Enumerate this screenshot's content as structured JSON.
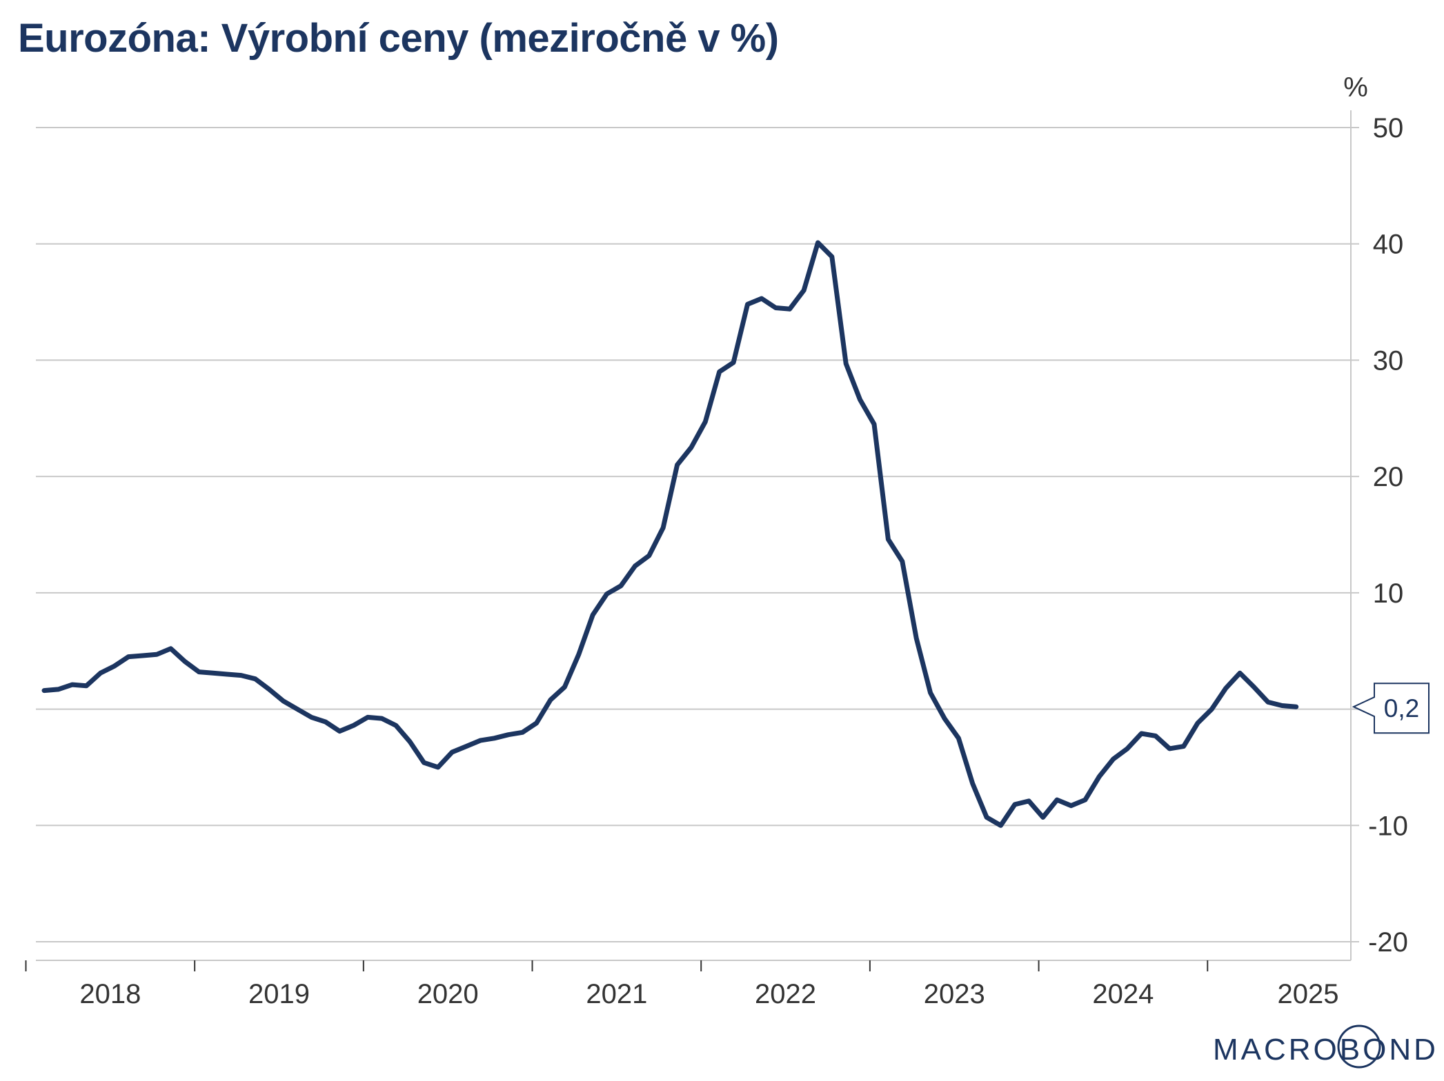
{
  "title": "Eurozóna: Výrobní ceny (meziročně v %)",
  "brand": "MACROBOND",
  "chart_data": {
    "type": "line",
    "title": "Eurozóna: Výrobní ceny (meziročně v %)",
    "ylabel": "%",
    "ylim": [
      -20,
      50
    ],
    "yticks": [
      "50",
      "40",
      "30",
      "20",
      "10",
      "0",
      "-10",
      "-20"
    ],
    "grid": true,
    "x_labels": [
      "2018",
      "2019",
      "2020",
      "2021",
      "2022",
      "2023",
      "2024",
      "2025"
    ],
    "last_value_label": "0,2",
    "series": [
      {
        "color": "#1c3560",
        "x": [
          "2018-01",
          "2018-02",
          "2018-03",
          "2018-04",
          "2018-05",
          "2018-06",
          "2018-07",
          "2018-08",
          "2018-09",
          "2018-10",
          "2018-11",
          "2018-12",
          "2019-01",
          "2019-02",
          "2019-03",
          "2019-04",
          "2019-05",
          "2019-06",
          "2019-07",
          "2019-08",
          "2019-09",
          "2019-10",
          "2019-11",
          "2019-12",
          "2020-01",
          "2020-02",
          "2020-03",
          "2020-04",
          "2020-05",
          "2020-06",
          "2020-07",
          "2020-08",
          "2020-09",
          "2020-10",
          "2020-11",
          "2020-12",
          "2021-01",
          "2021-02",
          "2021-03",
          "2021-04",
          "2021-05",
          "2021-06",
          "2021-07",
          "2021-08",
          "2021-09",
          "2021-10",
          "2021-11",
          "2021-12",
          "2022-01",
          "2022-02",
          "2022-03",
          "2022-04",
          "2022-05",
          "2022-06",
          "2022-07",
          "2022-08",
          "2022-09",
          "2022-10",
          "2022-11",
          "2022-12",
          "2023-01",
          "2023-02",
          "2023-03",
          "2023-04",
          "2023-05",
          "2023-06",
          "2023-07",
          "2023-08",
          "2023-09",
          "2023-10",
          "2023-11",
          "2023-12",
          "2024-01",
          "2024-02",
          "2024-03",
          "2024-04",
          "2024-05",
          "2024-06",
          "2024-07",
          "2024-08",
          "2024-09",
          "2024-10",
          "2024-11",
          "2024-12",
          "2025-01",
          "2025-02",
          "2025-03",
          "2025-04",
          "2025-05",
          "2025-06"
        ],
        "values": [
          1.6,
          1.7,
          2.1,
          2.0,
          3.1,
          3.7,
          4.5,
          4.6,
          4.7,
          5.2,
          4.1,
          3.2,
          3.1,
          3.0,
          2.9,
          2.6,
          1.7,
          0.7,
          0.0,
          -0.7,
          -1.1,
          -1.9,
          -1.4,
          -0.7,
          -0.8,
          -1.4,
          -2.8,
          -4.6,
          -5.0,
          -3.7,
          -3.2,
          -2.7,
          -2.5,
          -2.2,
          -2.0,
          -1.2,
          0.8,
          1.9,
          4.7,
          8.1,
          9.9,
          10.6,
          12.3,
          13.2,
          15.6,
          21.0,
          22.5,
          24.7,
          29.0,
          29.8,
          34.8,
          35.3,
          34.5,
          34.4,
          36.0,
          40.1,
          38.9,
          29.7,
          26.6,
          24.5,
          14.6,
          12.7,
          6.1,
          1.4,
          -0.8,
          -2.5,
          -6.4,
          -9.3,
          -10.0,
          -8.2,
          -7.9,
          -9.3,
          -7.8,
          -8.3,
          -7.8,
          -5.8,
          -4.3,
          -3.4,
          -2.1,
          -2.3,
          -3.4,
          -3.2,
          -1.2,
          0.0,
          1.8,
          3.1,
          1.9,
          0.6,
          0.3,
          0.2
        ]
      }
    ]
  }
}
